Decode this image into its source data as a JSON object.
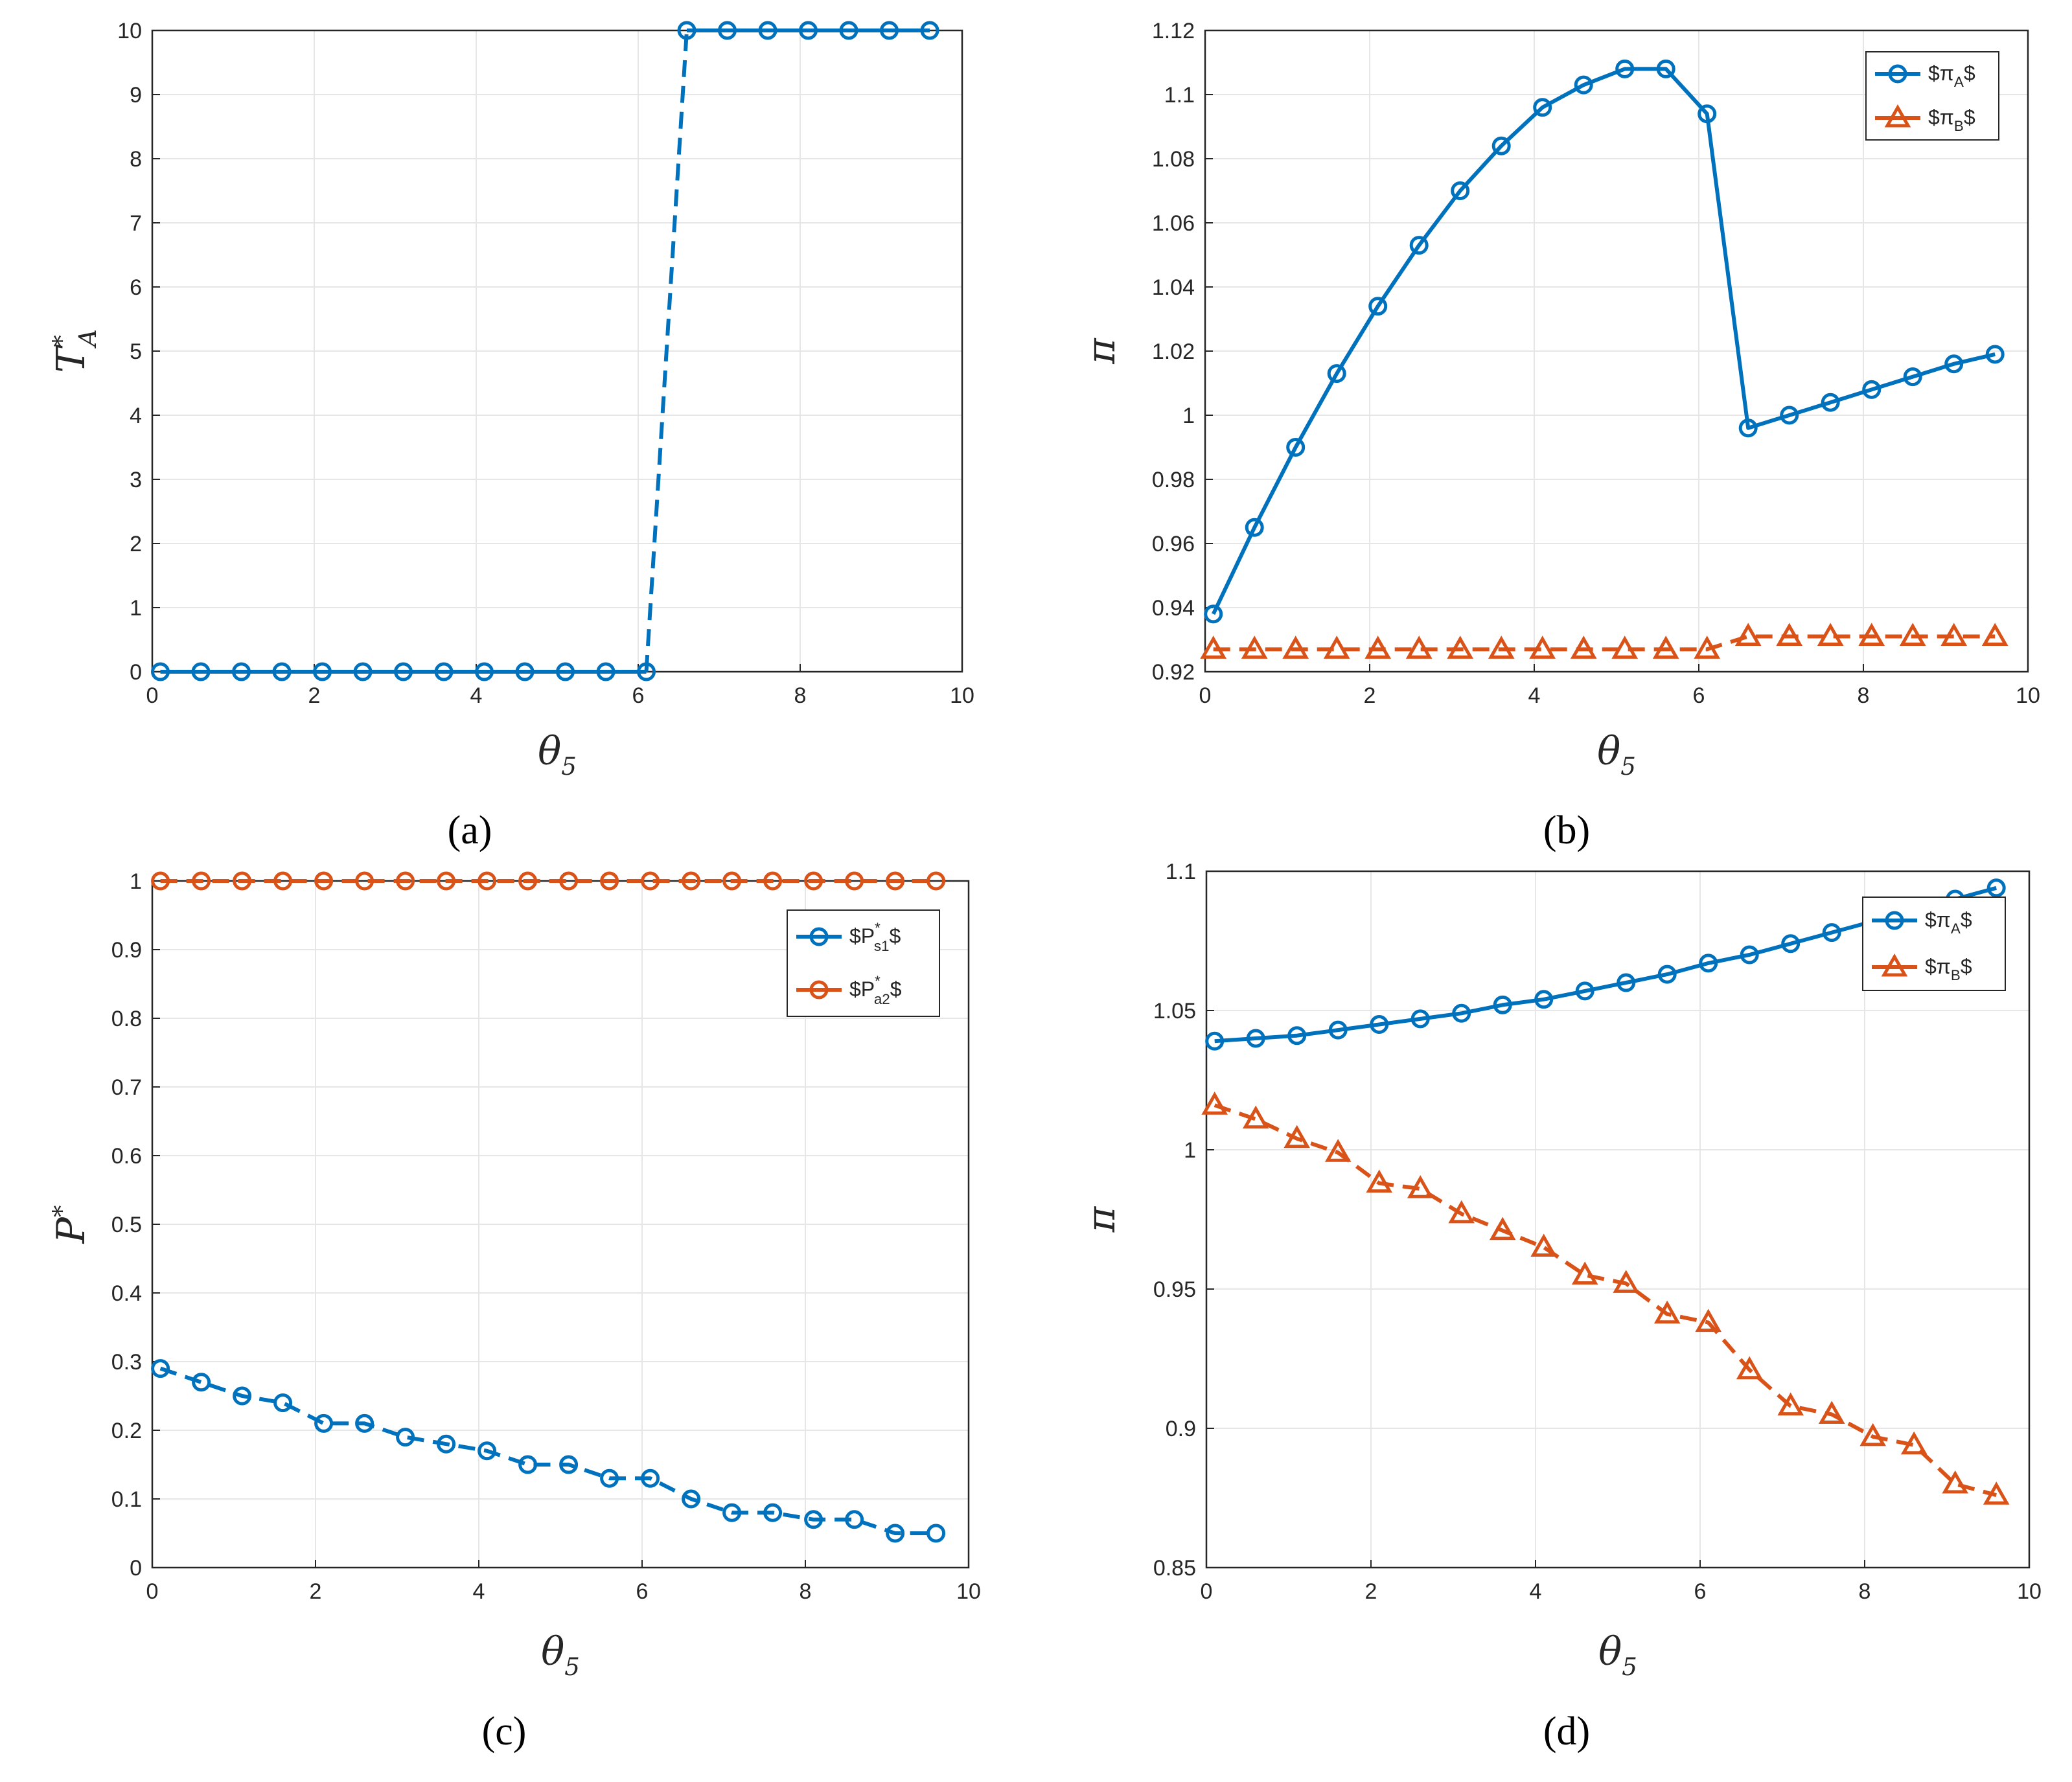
{
  "colors": {
    "blue": "#0072BD",
    "orange": "#D95319",
    "grid": "#e6e6e6",
    "axis": "#262626"
  },
  "figure": {
    "panel_labels": [
      "(a)",
      "(b)",
      "(c)",
      "(d)"
    ],
    "x_label_base": "θ",
    "x_label_sub": "5"
  },
  "chart_data": [
    {
      "id": "a",
      "type": "line",
      "title": "",
      "xlabel": "θ5",
      "ylabel": "T*A",
      "ylabel_base": "T",
      "ylabel_sub": "A",
      "ylabel_sup": "*",
      "xlim": [
        0,
        10
      ],
      "ylim": [
        0,
        10
      ],
      "xticks": [
        0,
        2,
        4,
        6,
        8,
        10
      ],
      "yticks": [
        0,
        1,
        2,
        3,
        4,
        5,
        6,
        7,
        8,
        9,
        10
      ],
      "grid": true,
      "legend": null,
      "series": [
        {
          "name": "T*A",
          "color": "blue",
          "marker": "circle",
          "line": "solid-then-dashed-jump",
          "x": [
            0.1,
            0.6,
            1.1,
            1.6,
            2.1,
            2.6,
            3.1,
            3.6,
            4.1,
            4.6,
            5.1,
            5.6,
            6.1,
            6.6,
            7.1,
            7.6,
            8.1,
            8.6,
            9.1,
            9.6
          ],
          "values": [
            0,
            0,
            0,
            0,
            0,
            0,
            0,
            0,
            0,
            0,
            0,
            0,
            0,
            10,
            10,
            10,
            10,
            10,
            10,
            10
          ]
        }
      ]
    },
    {
      "id": "b",
      "type": "line",
      "title": "",
      "xlabel": "θ5",
      "ylabel": "π",
      "xlim": [
        0,
        10
      ],
      "ylim": [
        0.92,
        1.12
      ],
      "xticks": [
        0,
        2,
        4,
        6,
        8,
        10
      ],
      "yticks": [
        0.92,
        0.94,
        0.96,
        0.98,
        1,
        1.02,
        1.04,
        1.06,
        1.08,
        1.1,
        1.12
      ],
      "ytick_labels": [
        "0.92",
        "0.94",
        "0.96",
        "0.98",
        "1",
        "1.02",
        "1.04",
        "1.06",
        "1.08",
        "1.1",
        "1.12"
      ],
      "grid": true,
      "legend": {
        "position": "top-right",
        "entries": [
          {
            "prefix": "$π",
            "sub": "A",
            "suffix": "$"
          },
          {
            "prefix": "$π",
            "sub": "B",
            "suffix": "$"
          }
        ]
      },
      "series": [
        {
          "name": "$π_A$",
          "color": "blue",
          "marker": "circle",
          "line": "solid",
          "x": [
            0.1,
            0.6,
            1.1,
            1.6,
            2.1,
            2.6,
            3.1,
            3.6,
            4.1,
            4.6,
            5.1,
            5.6,
            6.1,
            6.6,
            7.1,
            7.6,
            8.1,
            8.6,
            9.1,
            9.6
          ],
          "values": [
            0.938,
            0.965,
            0.99,
            1.013,
            1.034,
            1.053,
            1.07,
            1.084,
            1.096,
            1.103,
            1.108,
            1.108,
            1.094,
            0.996,
            1.0,
            1.004,
            1.008,
            1.012,
            1.016,
            1.019
          ]
        },
        {
          "name": "$π_B$",
          "color": "orange",
          "marker": "triangle",
          "line": "dashed",
          "x": [
            0.1,
            0.6,
            1.1,
            1.6,
            2.1,
            2.6,
            3.1,
            3.6,
            4.1,
            4.6,
            5.1,
            5.6,
            6.1,
            6.6,
            7.1,
            7.6,
            8.1,
            8.6,
            9.1,
            9.6
          ],
          "values": [
            0.927,
            0.927,
            0.927,
            0.927,
            0.927,
            0.927,
            0.927,
            0.927,
            0.927,
            0.927,
            0.927,
            0.927,
            0.927,
            0.931,
            0.931,
            0.931,
            0.931,
            0.931,
            0.931,
            0.931
          ]
        }
      ]
    },
    {
      "id": "c",
      "type": "line",
      "title": "",
      "xlabel": "θ5",
      "ylabel": "P*",
      "ylabel_base": "P",
      "ylabel_sup": "*",
      "xlim": [
        0,
        10
      ],
      "ylim": [
        0,
        1
      ],
      "xticks": [
        0,
        2,
        4,
        6,
        8,
        10
      ],
      "yticks": [
        0,
        0.1,
        0.2,
        0.3,
        0.4,
        0.5,
        0.6,
        0.7,
        0.8,
        0.9,
        1
      ],
      "ytick_labels": [
        "0",
        "0.1",
        "0.2",
        "0.3",
        "0.4",
        "0.5",
        "0.6",
        "0.7",
        "0.8",
        "0.9",
        "1"
      ],
      "grid": true,
      "legend": {
        "position": "top-right",
        "entries": [
          {
            "prefix": "$P",
            "sup": "*",
            "sub": "s1",
            "suffix": "$"
          },
          {
            "prefix": "$P",
            "sup": "*",
            "sub": "a2",
            "suffix": "$"
          }
        ]
      },
      "series": [
        {
          "name": "$P*_s1$",
          "color": "blue",
          "marker": "circle",
          "line": "dashed",
          "x": [
            0.1,
            0.6,
            1.1,
            1.6,
            2.1,
            2.6,
            3.1,
            3.6,
            4.1,
            4.6,
            5.1,
            5.6,
            6.1,
            6.6,
            7.1,
            7.6,
            8.1,
            8.6,
            9.1,
            9.6
          ],
          "values": [
            0.29,
            0.27,
            0.25,
            0.24,
            0.21,
            0.21,
            0.19,
            0.18,
            0.17,
            0.15,
            0.15,
            0.13,
            0.13,
            0.1,
            0.08,
            0.08,
            0.07,
            0.07,
            0.05,
            0.05
          ]
        },
        {
          "name": "$P*_a2$",
          "color": "orange",
          "marker": "circle",
          "line": "dashed",
          "x": [
            0.1,
            0.6,
            1.1,
            1.6,
            2.1,
            2.6,
            3.1,
            3.6,
            4.1,
            4.6,
            5.1,
            5.6,
            6.1,
            6.6,
            7.1,
            7.6,
            8.1,
            8.6,
            9.1,
            9.6
          ],
          "values": [
            1,
            1,
            1,
            1,
            1,
            1,
            1,
            1,
            1,
            1,
            1,
            1,
            1,
            1,
            1,
            1,
            1,
            1,
            1,
            1
          ]
        }
      ]
    },
    {
      "id": "d",
      "type": "line",
      "title": "",
      "xlabel": "θ5",
      "ylabel": "π",
      "xlim": [
        0,
        10
      ],
      "ylim": [
        0.85,
        1.1
      ],
      "xticks": [
        0,
        2,
        4,
        6,
        8,
        10
      ],
      "yticks": [
        0.85,
        0.9,
        0.95,
        1,
        1.05,
        1.1
      ],
      "ytick_labels": [
        "0.85",
        "0.9",
        "0.95",
        "1",
        "1.05",
        "1.1"
      ],
      "grid": true,
      "legend": {
        "position": "top-right",
        "entries": [
          {
            "prefix": "$π",
            "sub": "A",
            "suffix": "$"
          },
          {
            "prefix": "$π",
            "sub": "B",
            "suffix": "$"
          }
        ]
      },
      "series": [
        {
          "name": "$π_A$",
          "color": "blue",
          "marker": "circle",
          "line": "solid",
          "x": [
            0.1,
            0.6,
            1.1,
            1.6,
            2.1,
            2.6,
            3.1,
            3.6,
            4.1,
            4.6,
            5.1,
            5.6,
            6.1,
            6.6,
            7.1,
            7.6,
            8.1,
            8.6,
            9.1,
            9.6
          ],
          "values": [
            1.039,
            1.04,
            1.041,
            1.043,
            1.045,
            1.047,
            1.049,
            1.052,
            1.054,
            1.057,
            1.06,
            1.063,
            1.067,
            1.07,
            1.074,
            1.078,
            1.082,
            1.086,
            1.09,
            1.094
          ]
        },
        {
          "name": "$π_B$",
          "color": "orange",
          "marker": "triangle",
          "line": "dashed",
          "x": [
            0.1,
            0.6,
            1.1,
            1.6,
            2.1,
            2.6,
            3.1,
            3.6,
            4.1,
            4.6,
            5.1,
            5.6,
            6.1,
            6.6,
            7.1,
            7.6,
            8.1,
            8.6,
            9.1,
            9.6
          ],
          "values": [
            1.016,
            1.011,
            1.004,
            0.999,
            0.988,
            0.986,
            0.977,
            0.971,
            0.965,
            0.955,
            0.952,
            0.941,
            0.938,
            0.921,
            0.908,
            0.905,
            0.897,
            0.894,
            0.88,
            0.876
          ]
        }
      ]
    }
  ]
}
